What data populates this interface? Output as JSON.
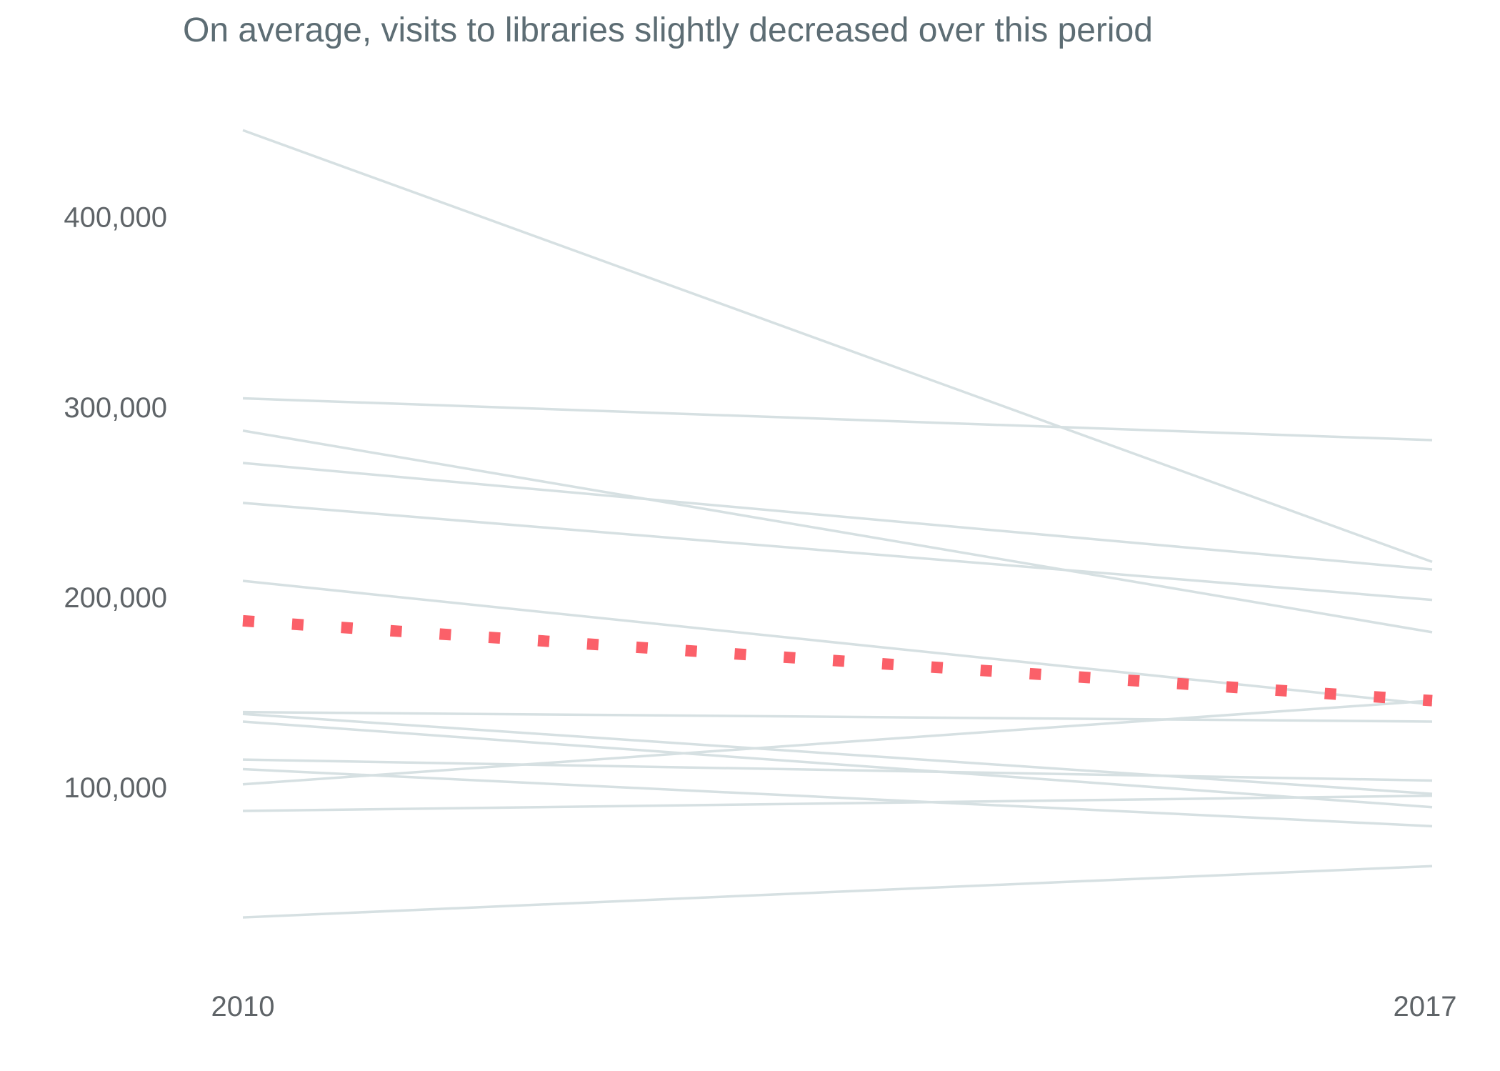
{
  "chart_data": {
    "type": "line",
    "title": "On average, visits to libraries slightly decreased over this period",
    "xlabel": "",
    "ylabel": "",
    "x": [
      "2010",
      "2017"
    ],
    "ylim": [
      20000,
      460000
    ],
    "y_ticks": [
      {
        "value": 100000,
        "label": "100,000"
      },
      {
        "value": 200000,
        "label": "200,000"
      },
      {
        "value": 300000,
        "label": "300,000"
      },
      {
        "value": 400000,
        "label": "400,000"
      }
    ],
    "grid": false,
    "legend": "none",
    "colors": {
      "series": "#d6e0e2",
      "average": "#fb6069",
      "title": "#5d6d74",
      "tick": "#5f6468"
    },
    "series": [
      {
        "values": [
          446000,
          219000
        ]
      },
      {
        "values": [
          305000,
          283000
        ]
      },
      {
        "values": [
          288000,
          182000
        ]
      },
      {
        "values": [
          271000,
          215000
        ]
      },
      {
        "values": [
          250000,
          199000
        ]
      },
      {
        "values": [
          209000,
          144000
        ]
      },
      {
        "values": [
          140000,
          135000
        ]
      },
      {
        "values": [
          139000,
          97000
        ]
      },
      {
        "values": [
          135000,
          90000
        ]
      },
      {
        "values": [
          102000,
          146000
        ]
      },
      {
        "values": [
          115000,
          104000
        ]
      },
      {
        "values": [
          110000,
          80000
        ]
      },
      {
        "values": [
          88000,
          96000
        ]
      },
      {
        "values": [
          32000,
          59000
        ]
      }
    ],
    "average": {
      "values": [
        188000,
        146000
      ]
    }
  }
}
